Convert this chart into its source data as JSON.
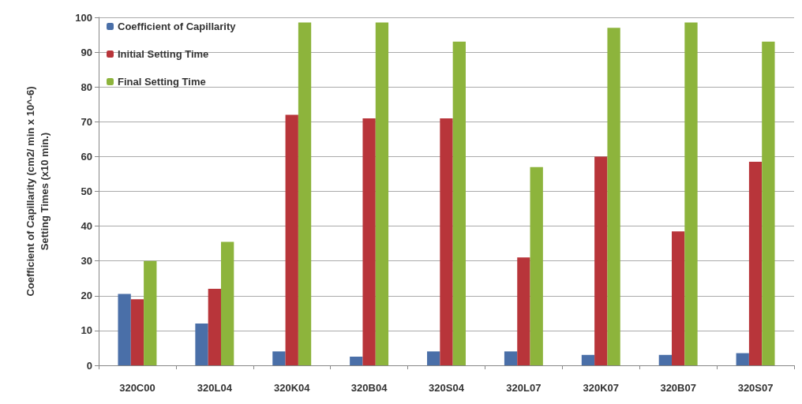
{
  "chart_data": {
    "type": "bar",
    "ylabel": "Coefficient of Capillarity (cm2/ min x 10^-6)\nSetting Times (x10 min.)",
    "categories": [
      "320C00",
      "320L04",
      "320K04",
      "320B04",
      "320S04",
      "320L07",
      "320K07",
      "320B07",
      "320S07"
    ],
    "series": [
      {
        "name": "Coefficient of Capillarity",
        "color": "#4a6fa8",
        "values": [
          20.5,
          12,
          4,
          2.5,
          4,
          4,
          3,
          3,
          3.5
        ]
      },
      {
        "name": "Initial Setting Time",
        "color": "#b8353a",
        "values": [
          19,
          22,
          72,
          71,
          71,
          31,
          60,
          38.5,
          58.5
        ]
      },
      {
        "name": "Final Setting Time",
        "color": "#8db43c",
        "values": [
          30,
          35.5,
          98.5,
          98.5,
          93,
          57,
          97,
          98.5,
          93
        ]
      }
    ],
    "ylim": [
      0,
      100
    ],
    "yticks": [
      0,
      10,
      20,
      30,
      40,
      50,
      60,
      70,
      80,
      90,
      100
    ],
    "grid": "y",
    "legend": "top left"
  }
}
